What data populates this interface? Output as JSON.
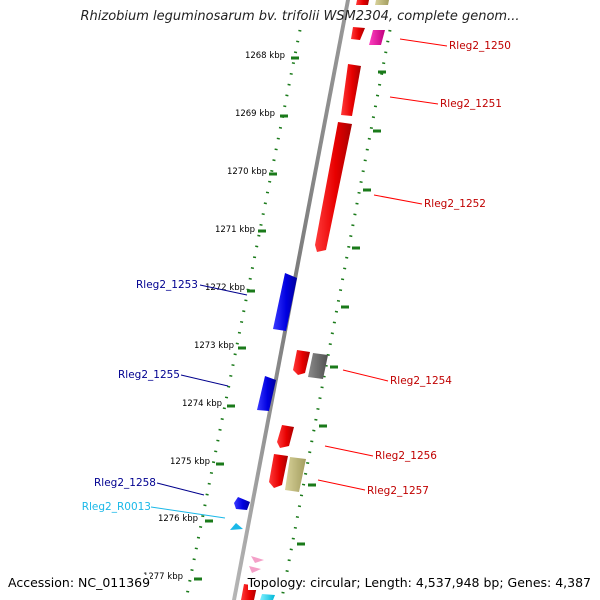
{
  "title": "Rhizobium leguminosarum bv. trifolii WSM2304, complete genom...",
  "footer": {
    "accession": "Accession: NC_011369",
    "summary": "Topology: circular; Length: 4,537,948 bp; Genes: 4,387"
  },
  "colors": {
    "backbone": "#808080",
    "ticks": "#1a7a1a",
    "forward_cds": "#ff0000",
    "reverse_cds": "#0000ff",
    "rrna_gene": "#d4326e",
    "trna_gene": "#1ab8e8",
    "pseudogene": "#696969",
    "misc_feature": "#bdb676",
    "label_forward": "#c00000",
    "label_reverse": "#000090",
    "label_rna": "#1ab8e8"
  },
  "ruler": {
    "unit": "kbp",
    "ticks": [
      "1268 kbp",
      "1269 kbp",
      "1270 kbp",
      "1271 kbp",
      "1272 kbp",
      "1273 kbp",
      "1274 kbp",
      "1275 kbp",
      "1276 kbp",
      "1277 kbp"
    ]
  },
  "features": {
    "forward_labels": [
      "Rleg2_1250",
      "Rleg2_1251",
      "Rleg2_1252",
      "Rleg2_1254",
      "Rleg2_1256",
      "Rleg2_1257"
    ],
    "reverse_labels": [
      "Rleg2_1253",
      "Rleg2_1255",
      "Rleg2_1258",
      "Rleg2_R0013"
    ]
  }
}
